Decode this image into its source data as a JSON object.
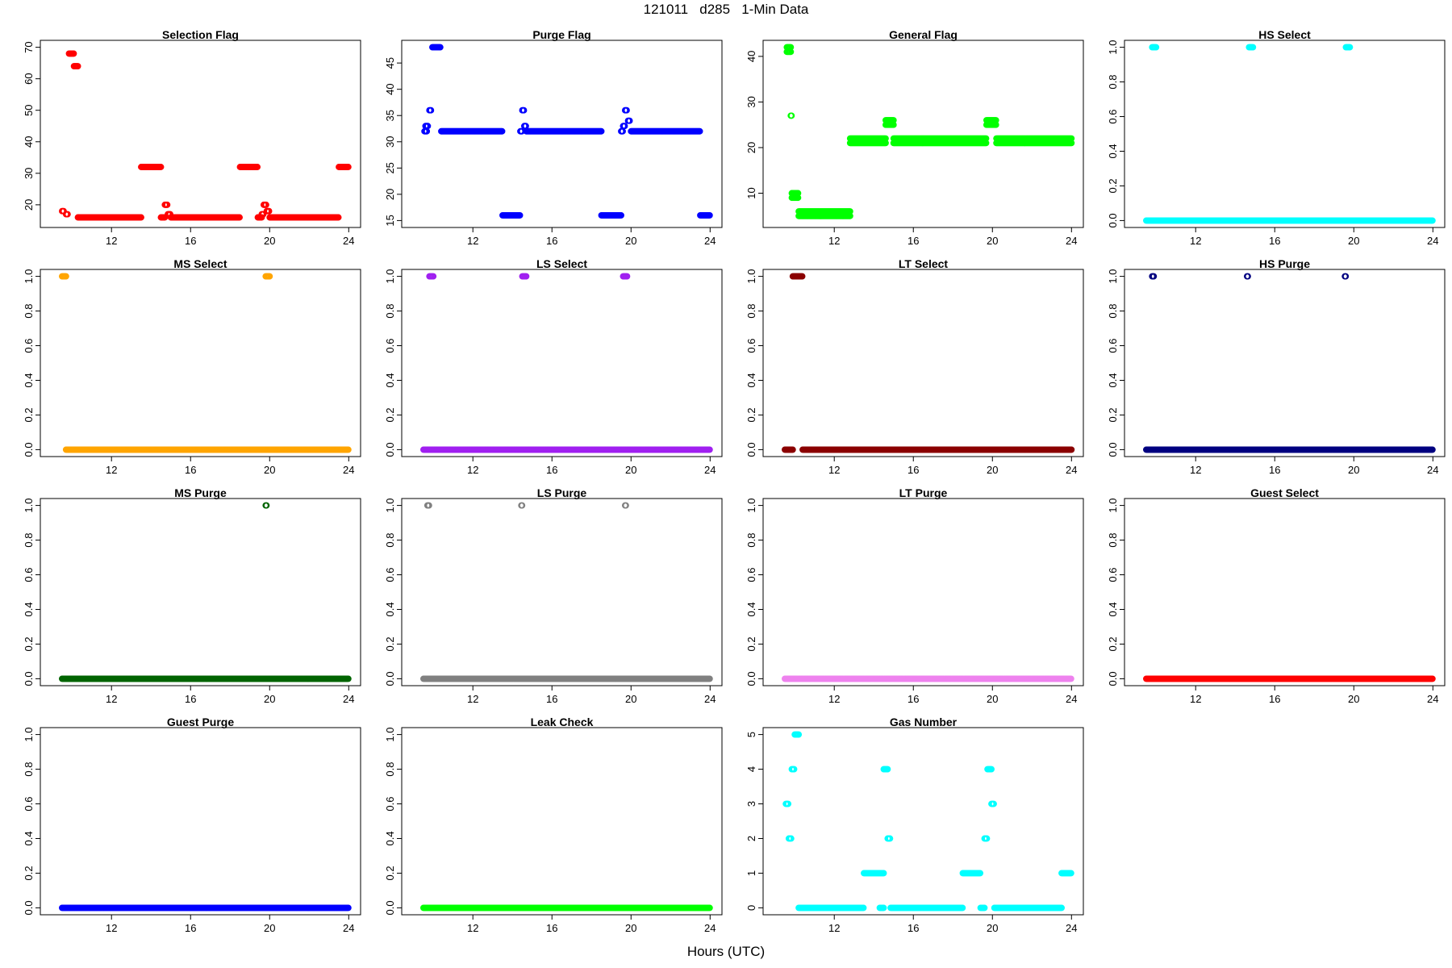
{
  "figure": {
    "title": "121011   d285   1-Min Data",
    "xlabel": "Hours (UTC)"
  },
  "chart_data": [
    {
      "type": "scatter",
      "title": "Selection Flag",
      "color": "#ff0000",
      "ylim": [
        15,
        70
      ],
      "yticks": [
        20,
        30,
        40,
        50,
        60,
        70
      ],
      "xlim": [
        9,
        24
      ],
      "xticks": [
        12,
        16,
        20,
        24
      ],
      "segments": [
        [
          9.5,
          9.6,
          18
        ],
        [
          9.7,
          9.8,
          17
        ],
        [
          9.85,
          10.1,
          68
        ],
        [
          10.1,
          10.3,
          64
        ],
        [
          10.3,
          13.5,
          16
        ],
        [
          13.5,
          14.5,
          32
        ],
        [
          14.5,
          14.7,
          16
        ],
        [
          14.7,
          14.85,
          20
        ],
        [
          14.85,
          15.0,
          17
        ],
        [
          15.0,
          18.5,
          16
        ],
        [
          18.5,
          19.4,
          32
        ],
        [
          19.4,
          19.6,
          16
        ],
        [
          19.6,
          19.7,
          17
        ],
        [
          19.7,
          19.85,
          20
        ],
        [
          19.85,
          20.0,
          18
        ],
        [
          20.0,
          23.5,
          16
        ],
        [
          23.5,
          24.0,
          32
        ]
      ]
    },
    {
      "type": "scatter",
      "title": "Purge Flag",
      "color": "#0000ff",
      "ylim": [
        15,
        48
      ],
      "yticks": [
        15,
        20,
        25,
        30,
        35,
        40,
        45
      ],
      "xlim": [
        9,
        24
      ],
      "xticks": [
        12,
        16,
        20,
        24
      ],
      "segments": [
        [
          9.55,
          9.7,
          32
        ],
        [
          9.6,
          9.75,
          33
        ],
        [
          9.8,
          9.9,
          36
        ],
        [
          9.95,
          10.35,
          48
        ],
        [
          10.4,
          13.5,
          32
        ],
        [
          13.5,
          14.4,
          16
        ],
        [
          14.4,
          14.5,
          32
        ],
        [
          14.5,
          14.6,
          36
        ],
        [
          14.6,
          14.7,
          33
        ],
        [
          14.7,
          18.5,
          32
        ],
        [
          18.5,
          19.5,
          16
        ],
        [
          19.5,
          19.6,
          32
        ],
        [
          19.6,
          19.7,
          33
        ],
        [
          19.7,
          19.8,
          36
        ],
        [
          19.85,
          19.95,
          34
        ],
        [
          20.0,
          23.5,
          32
        ],
        [
          23.5,
          24.0,
          16
        ]
      ]
    },
    {
      "type": "scatter",
      "title": "General Flag",
      "color": "#00ff00",
      "ylim": [
        4,
        42
      ],
      "yticks": [
        10,
        20,
        30,
        40
      ],
      "xlim": [
        9,
        24
      ],
      "xticks": [
        12,
        16,
        20,
        24
      ],
      "segments": [
        [
          9.6,
          9.8,
          42
        ],
        [
          9.6,
          9.8,
          41
        ],
        [
          9.8,
          9.85,
          27
        ],
        [
          9.85,
          10.2,
          10
        ],
        [
          9.85,
          10.2,
          9
        ],
        [
          10.2,
          12.8,
          6
        ],
        [
          10.2,
          12.8,
          5
        ],
        [
          12.8,
          14.6,
          22
        ],
        [
          12.8,
          14.6,
          21
        ],
        [
          14.6,
          15.0,
          26
        ],
        [
          14.6,
          15.0,
          25
        ],
        [
          15.0,
          19.7,
          22
        ],
        [
          15.0,
          19.7,
          21
        ],
        [
          19.7,
          20.2,
          26
        ],
        [
          19.7,
          20.2,
          25
        ],
        [
          20.2,
          24.0,
          22
        ],
        [
          20.2,
          24.0,
          21
        ]
      ]
    },
    {
      "type": "scatter",
      "title": "HS Select",
      "color": "#00ffff",
      "ylim": [
        0,
        1
      ],
      "yticks": [
        0.0,
        0.2,
        0.4,
        0.6,
        0.8,
        1.0
      ],
      "xlim": [
        9,
        24
      ],
      "xticks": [
        12,
        16,
        20,
        24
      ],
      "segments": [
        [
          9.5,
          24.0,
          0
        ],
        [
          9.8,
          10.0,
          1
        ],
        [
          14.7,
          14.9,
          1
        ],
        [
          19.6,
          19.8,
          1
        ]
      ]
    },
    {
      "type": "scatter",
      "title": "MS Select",
      "color": "#ffa500",
      "ylim": [
        0,
        1
      ],
      "yticks": [
        0.0,
        0.2,
        0.4,
        0.6,
        0.8,
        1.0
      ],
      "xlim": [
        9,
        24
      ],
      "xticks": [
        12,
        16,
        20,
        24
      ],
      "segments": [
        [
          9.5,
          9.7,
          1
        ],
        [
          9.7,
          24.0,
          0
        ],
        [
          19.8,
          20.0,
          1
        ]
      ]
    },
    {
      "type": "scatter",
      "title": "LS Select",
      "color": "#a020f0",
      "ylim": [
        0,
        1
      ],
      "yticks": [
        0.0,
        0.2,
        0.4,
        0.6,
        0.8,
        1.0
      ],
      "xlim": [
        9,
        24
      ],
      "xticks": [
        12,
        16,
        20,
        24
      ],
      "segments": [
        [
          9.5,
          24.0,
          0
        ],
        [
          9.8,
          10.0,
          1
        ],
        [
          14.5,
          14.7,
          1
        ],
        [
          19.6,
          19.8,
          1
        ]
      ]
    },
    {
      "type": "scatter",
      "title": "LT Select",
      "color": "#8b0000",
      "ylim": [
        0,
        1
      ],
      "yticks": [
        0.0,
        0.2,
        0.4,
        0.6,
        0.8,
        1.0
      ],
      "xlim": [
        9,
        24
      ],
      "xticks": [
        12,
        16,
        20,
        24
      ],
      "segments": [
        [
          9.5,
          9.9,
          0
        ],
        [
          9.9,
          10.4,
          1
        ],
        [
          10.4,
          24.0,
          0
        ]
      ]
    },
    {
      "type": "scatter",
      "title": "HS Purge",
      "color": "#000080",
      "ylim": [
        0,
        1
      ],
      "yticks": [
        0.0,
        0.2,
        0.4,
        0.6,
        0.8,
        1.0
      ],
      "xlim": [
        9,
        24
      ],
      "xticks": [
        12,
        16,
        20,
        24
      ],
      "segments": [
        [
          9.5,
          24.0,
          0
        ],
        [
          9.8,
          9.9,
          1
        ],
        [
          14.6,
          14.65,
          1
        ],
        [
          19.55,
          19.6,
          1
        ]
      ]
    },
    {
      "type": "scatter",
      "title": "MS Purge",
      "color": "#006400",
      "ylim": [
        0,
        1
      ],
      "yticks": [
        0.0,
        0.2,
        0.4,
        0.6,
        0.8,
        1.0
      ],
      "xlim": [
        9,
        24
      ],
      "xticks": [
        12,
        16,
        20,
        24
      ],
      "segments": [
        [
          9.5,
          24.0,
          0
        ],
        [
          19.8,
          19.85,
          1
        ]
      ]
    },
    {
      "type": "scatter",
      "title": "LS Purge",
      "color": "#808080",
      "ylim": [
        0,
        1
      ],
      "yticks": [
        0.0,
        0.2,
        0.4,
        0.6,
        0.8,
        1.0
      ],
      "xlim": [
        9,
        24
      ],
      "xticks": [
        12,
        16,
        20,
        24
      ],
      "segments": [
        [
          9.5,
          24.0,
          0
        ],
        [
          9.7,
          9.8,
          1
        ],
        [
          14.45,
          14.5,
          1
        ],
        [
          19.7,
          19.75,
          1
        ]
      ]
    },
    {
      "type": "scatter",
      "title": "LT Purge",
      "color": "#ee82ee",
      "ylim": [
        0,
        1
      ],
      "yticks": [
        0.0,
        0.2,
        0.4,
        0.6,
        0.8,
        1.0
      ],
      "xlim": [
        9,
        24
      ],
      "xticks": [
        12,
        16,
        20,
        24
      ],
      "segments": [
        [
          9.5,
          24.0,
          0
        ]
      ]
    },
    {
      "type": "scatter",
      "title": "Guest Select",
      "color": "#ff0000",
      "ylim": [
        0,
        1
      ],
      "yticks": [
        0.0,
        0.2,
        0.4,
        0.6,
        0.8,
        1.0
      ],
      "xlim": [
        9,
        24
      ],
      "xticks": [
        12,
        16,
        20,
        24
      ],
      "segments": [
        [
          9.5,
          24.0,
          0
        ]
      ]
    },
    {
      "type": "scatter",
      "title": "Guest Purge",
      "color": "#0000ff",
      "ylim": [
        0,
        1
      ],
      "yticks": [
        0.0,
        0.2,
        0.4,
        0.6,
        0.8,
        1.0
      ],
      "xlim": [
        9,
        24
      ],
      "xticks": [
        12,
        16,
        20,
        24
      ],
      "segments": [
        [
          9.5,
          24.0,
          0
        ]
      ]
    },
    {
      "type": "scatter",
      "title": "Leak Check",
      "color": "#00ff00",
      "ylim": [
        0,
        1
      ],
      "yticks": [
        0.0,
        0.2,
        0.4,
        0.6,
        0.8,
        1.0
      ],
      "xlim": [
        9,
        24
      ],
      "xticks": [
        12,
        16,
        20,
        24
      ],
      "segments": [
        [
          9.5,
          24.0,
          0
        ]
      ]
    },
    {
      "type": "scatter",
      "title": "Gas Number",
      "color": "#00ffff",
      "ylim": [
        0,
        5
      ],
      "yticks": [
        0,
        1,
        2,
        3,
        4,
        5
      ],
      "xlim": [
        9,
        24
      ],
      "xticks": [
        12,
        16,
        20,
        24
      ],
      "segments": [
        [
          9.55,
          9.7,
          3
        ],
        [
          9.7,
          9.85,
          2
        ],
        [
          9.85,
          10.0,
          4
        ],
        [
          10.0,
          10.2,
          5
        ],
        [
          10.2,
          13.5,
          0
        ],
        [
          13.5,
          14.5,
          1
        ],
        [
          14.3,
          14.5,
          0
        ],
        [
          14.5,
          14.7,
          4
        ],
        [
          14.7,
          14.85,
          2
        ],
        [
          14.85,
          18.5,
          0
        ],
        [
          18.5,
          19.4,
          1
        ],
        [
          19.4,
          19.6,
          0
        ],
        [
          19.6,
          19.75,
          2
        ],
        [
          19.75,
          19.95,
          4
        ],
        [
          19.95,
          20.1,
          3
        ],
        [
          20.1,
          23.5,
          0
        ],
        [
          23.5,
          24.0,
          1
        ]
      ]
    }
  ]
}
